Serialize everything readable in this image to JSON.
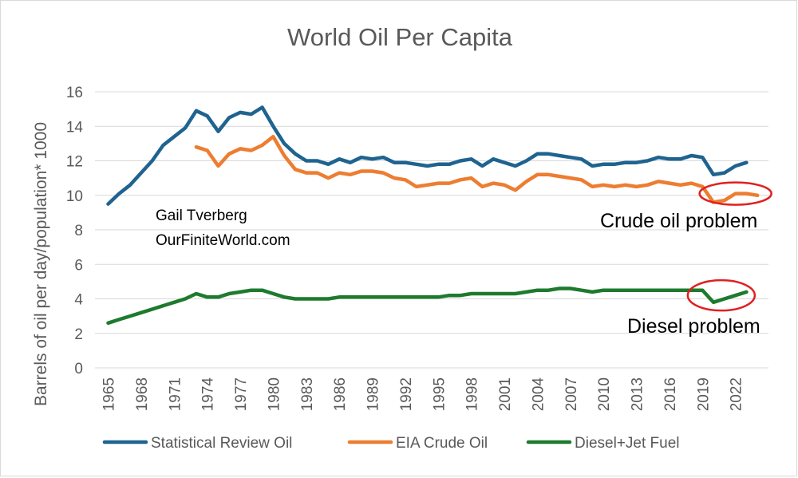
{
  "chart_data": {
    "type": "line",
    "title": "World Oil Per Capita",
    "ylabel": "Barrels of oil per day/population* 1000",
    "xlabel": "",
    "ylim": [
      0,
      16
    ],
    "yticks": [
      0,
      2,
      4,
      6,
      8,
      10,
      12,
      14,
      16
    ],
    "xlim": [
      1965,
      2023
    ],
    "xticks": [
      1965,
      1968,
      1971,
      1974,
      1977,
      1980,
      1983,
      1986,
      1989,
      1992,
      1995,
      1998,
      2001,
      2004,
      2007,
      2010,
      2013,
      2016,
      2019,
      2022
    ],
    "grid": true,
    "legend_position": "bottom",
    "series": [
      {
        "name": "Statistical Review Oil",
        "color": "#1f6390",
        "points": [
          [
            1965,
            9.5
          ],
          [
            1966,
            10.1
          ],
          [
            1967,
            10.6
          ],
          [
            1968,
            11.3
          ],
          [
            1969,
            12.0
          ],
          [
            1970,
            12.9
          ],
          [
            1971,
            13.4
          ],
          [
            1972,
            13.9
          ],
          [
            1973,
            14.9
          ],
          [
            1974,
            14.6
          ],
          [
            1975,
            13.7
          ],
          [
            1976,
            14.5
          ],
          [
            1977,
            14.8
          ],
          [
            1978,
            14.7
          ],
          [
            1979,
            15.1
          ],
          [
            1980,
            14.0
          ],
          [
            1981,
            13.0
          ],
          [
            1982,
            12.4
          ],
          [
            1983,
            12.0
          ],
          [
            1984,
            12.0
          ],
          [
            1985,
            11.8
          ],
          [
            1986,
            12.1
          ],
          [
            1987,
            11.9
          ],
          [
            1988,
            12.2
          ],
          [
            1989,
            12.1
          ],
          [
            1990,
            12.2
          ],
          [
            1991,
            11.9
          ],
          [
            1992,
            11.9
          ],
          [
            1993,
            11.8
          ],
          [
            1994,
            11.7
          ],
          [
            1995,
            11.8
          ],
          [
            1996,
            11.8
          ],
          [
            1997,
            12.0
          ],
          [
            1998,
            12.1
          ],
          [
            1999,
            11.7
          ],
          [
            2000,
            12.1
          ],
          [
            2001,
            11.9
          ],
          [
            2002,
            11.7
          ],
          [
            2003,
            12.0
          ],
          [
            2004,
            12.4
          ],
          [
            2005,
            12.4
          ],
          [
            2006,
            12.3
          ],
          [
            2007,
            12.2
          ],
          [
            2008,
            12.1
          ],
          [
            2009,
            11.7
          ],
          [
            2010,
            11.8
          ],
          [
            2011,
            11.8
          ],
          [
            2012,
            11.9
          ],
          [
            2013,
            11.9
          ],
          [
            2014,
            12.0
          ],
          [
            2015,
            12.2
          ],
          [
            2016,
            12.1
          ],
          [
            2017,
            12.1
          ],
          [
            2018,
            12.3
          ],
          [
            2019,
            12.2
          ],
          [
            2020,
            11.2
          ],
          [
            2021,
            11.3
          ],
          [
            2022,
            11.7
          ],
          [
            2023,
            11.9
          ]
        ]
      },
      {
        "name": "EIA Crude Oil",
        "color": "#ed7d31",
        "points": [
          [
            1973,
            12.8
          ],
          [
            1974,
            12.6
          ],
          [
            1975,
            11.7
          ],
          [
            1976,
            12.4
          ],
          [
            1977,
            12.7
          ],
          [
            1978,
            12.6
          ],
          [
            1979,
            12.9
          ],
          [
            1980,
            13.4
          ],
          [
            1981,
            12.3
          ],
          [
            1982,
            11.5
          ],
          [
            1983,
            11.3
          ],
          [
            1984,
            11.3
          ],
          [
            1985,
            11.0
          ],
          [
            1986,
            11.3
          ],
          [
            1987,
            11.2
          ],
          [
            1988,
            11.4
          ],
          [
            1989,
            11.4
          ],
          [
            1990,
            11.3
          ],
          [
            1991,
            11.0
          ],
          [
            1992,
            10.9
          ],
          [
            1993,
            10.5
          ],
          [
            1994,
            10.6
          ],
          [
            1995,
            10.7
          ],
          [
            1996,
            10.7
          ],
          [
            1997,
            10.9
          ],
          [
            1998,
            11.0
          ],
          [
            1999,
            10.5
          ],
          [
            2000,
            10.7
          ],
          [
            2001,
            10.6
          ],
          [
            2002,
            10.3
          ],
          [
            2003,
            10.8
          ],
          [
            2004,
            11.2
          ],
          [
            2005,
            11.2
          ],
          [
            2006,
            11.1
          ],
          [
            2007,
            11.0
          ],
          [
            2008,
            10.9
          ],
          [
            2009,
            10.5
          ],
          [
            2010,
            10.6
          ],
          [
            2011,
            10.5
          ],
          [
            2012,
            10.6
          ],
          [
            2013,
            10.5
          ],
          [
            2014,
            10.6
          ],
          [
            2015,
            10.8
          ],
          [
            2016,
            10.7
          ],
          [
            2017,
            10.6
          ],
          [
            2018,
            10.7
          ],
          [
            2019,
            10.5
          ],
          [
            2020,
            9.6
          ],
          [
            2021,
            9.7
          ],
          [
            2022,
            10.1
          ],
          [
            2023,
            10.1
          ],
          [
            2024,
            10.0
          ]
        ]
      },
      {
        "name": "Diesel+Jet Fuel",
        "color": "#1e7a2e",
        "points": [
          [
            1965,
            2.6
          ],
          [
            1966,
            2.8
          ],
          [
            1967,
            3.0
          ],
          [
            1968,
            3.2
          ],
          [
            1969,
            3.4
          ],
          [
            1970,
            3.6
          ],
          [
            1971,
            3.8
          ],
          [
            1972,
            4.0
          ],
          [
            1973,
            4.3
          ],
          [
            1974,
            4.1
          ],
          [
            1975,
            4.1
          ],
          [
            1976,
            4.3
          ],
          [
            1977,
            4.4
          ],
          [
            1978,
            4.5
          ],
          [
            1979,
            4.5
          ],
          [
            1980,
            4.3
          ],
          [
            1981,
            4.1
          ],
          [
            1982,
            4.0
          ],
          [
            1983,
            4.0
          ],
          [
            1984,
            4.0
          ],
          [
            1985,
            4.0
          ],
          [
            1986,
            4.1
          ],
          [
            1987,
            4.1
          ],
          [
            1988,
            4.1
          ],
          [
            1989,
            4.1
          ],
          [
            1990,
            4.1
          ],
          [
            1991,
            4.1
          ],
          [
            1992,
            4.1
          ],
          [
            1993,
            4.1
          ],
          [
            1994,
            4.1
          ],
          [
            1995,
            4.1
          ],
          [
            1996,
            4.2
          ],
          [
            1997,
            4.2
          ],
          [
            1998,
            4.3
          ],
          [
            1999,
            4.3
          ],
          [
            2000,
            4.3
          ],
          [
            2001,
            4.3
          ],
          [
            2002,
            4.3
          ],
          [
            2003,
            4.4
          ],
          [
            2004,
            4.5
          ],
          [
            2005,
            4.5
          ],
          [
            2006,
            4.6
          ],
          [
            2007,
            4.6
          ],
          [
            2008,
            4.5
          ],
          [
            2009,
            4.4
          ],
          [
            2010,
            4.5
          ],
          [
            2011,
            4.5
          ],
          [
            2012,
            4.5
          ],
          [
            2013,
            4.5
          ],
          [
            2014,
            4.5
          ],
          [
            2015,
            4.5
          ],
          [
            2016,
            4.5
          ],
          [
            2017,
            4.5
          ],
          [
            2018,
            4.5
          ],
          [
            2019,
            4.5
          ],
          [
            2020,
            3.8
          ],
          [
            2021,
            4.0
          ],
          [
            2022,
            4.2
          ],
          [
            2023,
            4.4
          ]
        ]
      }
    ],
    "annotations": {
      "author_line1": "Gail Tverberg",
      "author_line2": "OurFiniteWorld.com",
      "crude_callout": "Crude oil problem",
      "diesel_callout": "Diesel problem",
      "highlight_color": "#e02020",
      "crude_circle_center": [
        2022,
        10.1
      ],
      "diesel_circle_center": [
        2021,
        4.2
      ]
    }
  }
}
